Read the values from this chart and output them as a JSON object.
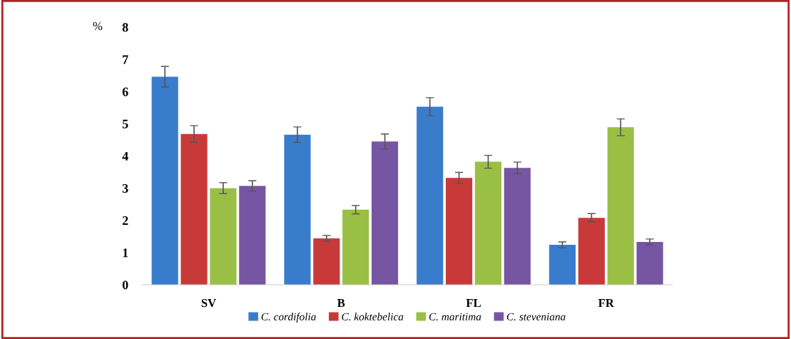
{
  "chart_data": {
    "type": "bar",
    "ylabel": "%",
    "categories": [
      "SV",
      "B",
      "FL",
      "FR"
    ],
    "series": [
      {
        "name": "C. cordifolia",
        "color": "#3a7ccc",
        "values": [
          6.46,
          4.66,
          5.53,
          1.24
        ],
        "errors": [
          0.32,
          0.24,
          0.28,
          0.09
        ]
      },
      {
        "name": "C. koktebelica",
        "color": "#c83a3a",
        "values": [
          4.68,
          1.44,
          3.32,
          2.08
        ],
        "errors": [
          0.26,
          0.09,
          0.17,
          0.13
        ]
      },
      {
        "name": "C. maritima",
        "color": "#9abf45",
        "values": [
          3.0,
          2.33,
          3.82,
          4.89
        ],
        "errors": [
          0.17,
          0.13,
          0.2,
          0.26
        ]
      },
      {
        "name": "C. steveniana",
        "color": "#7655a3",
        "values": [
          3.07,
          4.45,
          3.63,
          1.33
        ],
        "errors": [
          0.16,
          0.23,
          0.18,
          0.09
        ]
      }
    ],
    "ylim": [
      0,
      8
    ],
    "yticks": [
      0,
      1,
      2,
      3,
      4,
      5,
      6,
      7,
      8
    ],
    "grid": false,
    "legend": "bottom"
  }
}
